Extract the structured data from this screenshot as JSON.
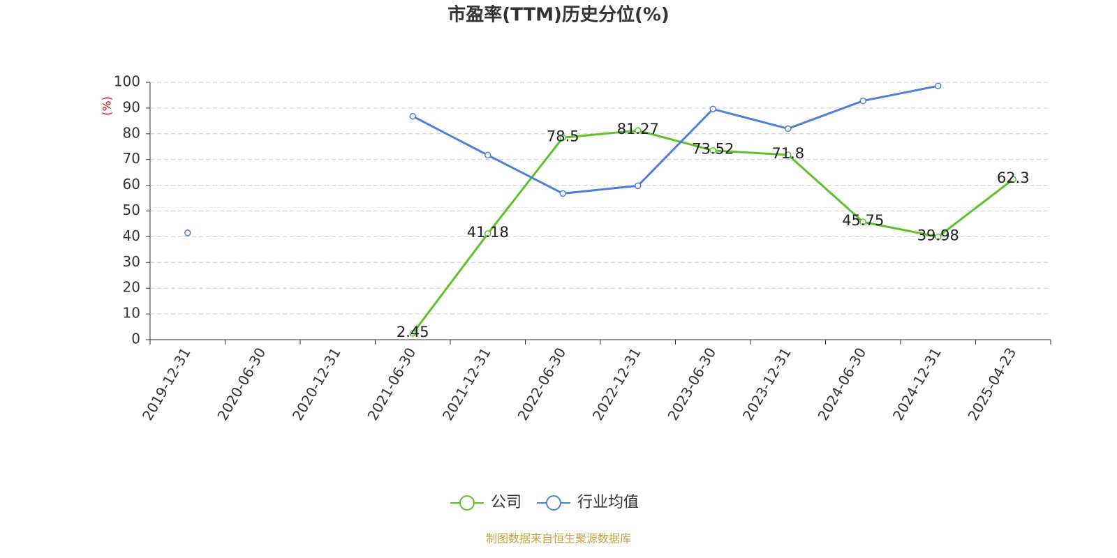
{
  "chart_data": {
    "type": "line",
    "title": "市盈率(TTM)历史分位(%)",
    "y_label": "(%)",
    "source": "制图数据来自恒生聚源数据库",
    "categories": [
      "2019-12-31",
      "2020-06-30",
      "2020-12-31",
      "2021-06-30",
      "2021-12-31",
      "2022-06-30",
      "2022-12-31",
      "2023-06-30",
      "2023-12-31",
      "2024-06-30",
      "2024-12-31",
      "2025-04-23"
    ],
    "series": [
      {
        "name": "公司",
        "color": "#5cc22a",
        "show_labels": true,
        "values": [
          null,
          null,
          null,
          2.45,
          41.18,
          78.5,
          81.27,
          73.52,
          71.8,
          45.75,
          39.98,
          62.3
        ]
      },
      {
        "name": "行业均值",
        "color": "#4d7fdc",
        "show_labels": false,
        "values": [
          41.5,
          null,
          null,
          86.8,
          71.7,
          56.8,
          59.8,
          89.6,
          82,
          92.8,
          98.6,
          null
        ]
      }
    ],
    "ylim": [
      0,
      100
    ],
    "yticks": [
      0,
      10,
      20,
      30,
      40,
      50,
      60,
      70,
      80,
      90,
      100
    ],
    "grid": true
  }
}
